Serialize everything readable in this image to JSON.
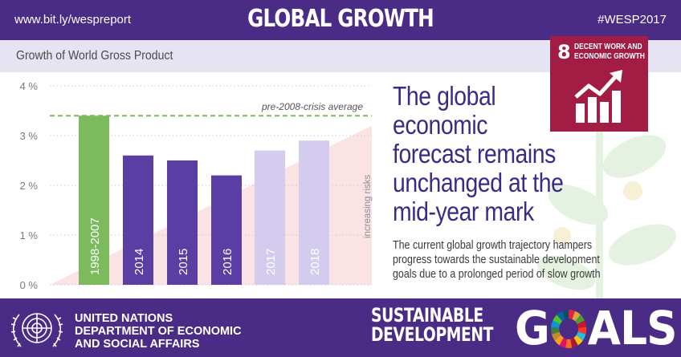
{
  "header": {
    "url": "www.bit.ly/wespreport",
    "title": "GLOBAL GROWTH",
    "hashtag": "#WESP2017"
  },
  "subtitle": "Growth of World Gross Product",
  "headline": [
    "The global",
    "economic",
    "forecast remains",
    "unchanged at the",
    "mid-year mark"
  ],
  "body": [
    "The current global growth trajectory hampers",
    "progress towards the sustainable development",
    "goals due to a prolonged period of slow growth"
  ],
  "sdg_badge": {
    "number": "8",
    "label_lines": [
      "DECENT WORK AND",
      "ECONOMIC GROWTH"
    ],
    "color": "#a31c44",
    "icon": "growth-chart-icon"
  },
  "footer": {
    "org_lines": [
      "UNITED NATIONS",
      "DEPARTMENT OF ECONOMIC",
      "AND SOCIAL AFFAIRS"
    ],
    "sdg_words": [
      "SUSTAINABLE",
      "DEVELOPMENT"
    ],
    "goals_lead": "G",
    "goals_rest": "ALS",
    "emblem_icon": "un-emblem-icon"
  },
  "colors": {
    "brand_purple": "#4a2c86",
    "headline_purple": "#3d2a86",
    "average_green": "#7cbb5d",
    "bar_actual": "#5b3ea3",
    "bar_forecast": "#d4ccee",
    "risk_wedge": "#fbe3e4"
  },
  "chart_data": {
    "type": "bar",
    "categories": [
      "1998-2007",
      "2014",
      "2015",
      "2016",
      "2017",
      "2018"
    ],
    "values": [
      3.4,
      2.6,
      2.5,
      2.2,
      2.7,
      2.9
    ],
    "bar_styles": [
      "average",
      "actual",
      "actual",
      "actual",
      "forecast",
      "forecast"
    ],
    "ylim": [
      0,
      4
    ],
    "yticks": [
      0,
      1,
      2,
      3,
      4
    ],
    "ytick_labels": [
      "0 %",
      "1 %",
      "2 %",
      "3 %",
      "4 %"
    ],
    "reference_line": {
      "value": 3.4,
      "label": "pre-2008-crisis average"
    },
    "risk_annotation": "increasing risks",
    "grid": "horizontal dotted",
    "xlabel": "",
    "ylabel": ""
  }
}
